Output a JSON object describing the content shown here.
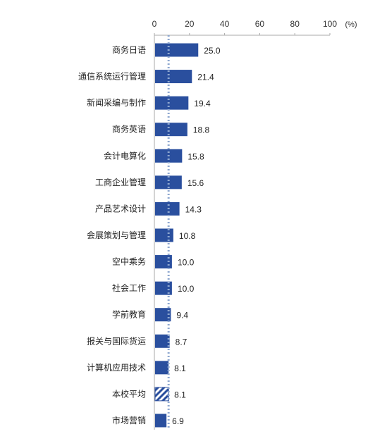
{
  "chart_data": {
    "type": "bar",
    "orientation": "horizontal",
    "x_ticks": [
      0,
      20,
      40,
      60,
      80,
      100
    ],
    "x_unit": "(%)",
    "xlim": [
      0,
      100
    ],
    "categories": [
      "商务日语",
      "通信系统运行管理",
      "新闻采编与制作",
      "商务英语",
      "会计电算化",
      "工商企业管理",
      "产品艺术设计",
      "会展策划与管理",
      "空中乘务",
      "社会工作",
      "学前教育",
      "报关与国际货运",
      "计算机应用技术",
      "本校平均",
      "市场营销"
    ],
    "values": [
      25.0,
      21.4,
      19.4,
      18.8,
      15.8,
      15.6,
      14.3,
      10.8,
      10.0,
      10.0,
      9.4,
      8.7,
      8.1,
      8.1,
      6.9
    ],
    "value_labels": [
      "25.0",
      "21.4",
      "19.4",
      "18.8",
      "15.8",
      "15.6",
      "14.3",
      "10.8",
      "10.0",
      "10.0",
      "9.4",
      "8.7",
      "8.1",
      "8.1",
      "6.9"
    ],
    "highlight_category": "本校平均",
    "reference_line_value": 8.1,
    "grid": false,
    "colors": {
      "bar": "#2a4f9e",
      "highlight_hatch": "#2a4f9e",
      "reference_line": "#8fa8d0",
      "axis": "#aaaaaa"
    }
  }
}
